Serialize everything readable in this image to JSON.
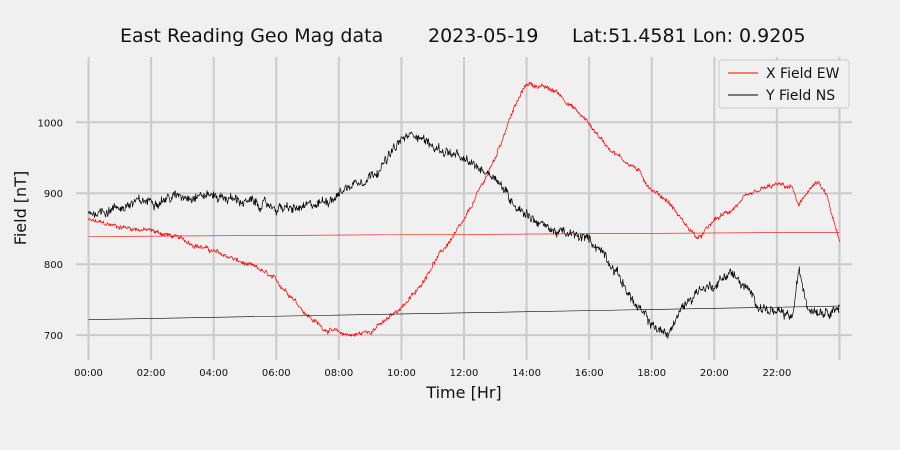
{
  "chart_data": {
    "type": "line",
    "title": {
      "name": "East Reading Geo Mag data",
      "date": "2023-05-19",
      "location": "Lat:51.4581  Lon: 0.9205"
    },
    "xlabel": "Time  [Hr]",
    "ylabel": "Field  [nT]",
    "xlim": [
      -0.4,
      24.4
    ],
    "ylim": [
      665,
      1092
    ],
    "x_ticks": [
      0,
      2,
      4,
      6,
      8,
      10,
      12,
      14,
      16,
      18,
      20,
      22
    ],
    "x_tick_labels": [
      "00:00",
      "02:00",
      "04:00",
      "06:00",
      "08:00",
      "10:00",
      "12:00",
      "14:00",
      "16:00",
      "18:00",
      "20:00",
      "22:00"
    ],
    "x_grid_extra": [
      24
    ],
    "y_ticks": [
      700,
      800,
      900,
      1000
    ],
    "grid": true,
    "legend_position": "top-right",
    "series": [
      {
        "name": "X Field EW",
        "color": "#ff0000",
        "noise": 3,
        "x": [
          0,
          0.5,
          1,
          1.5,
          2,
          2.5,
          3,
          3.5,
          4,
          4.5,
          5,
          5.5,
          6,
          6.5,
          7,
          7.5,
          8,
          8.5,
          9,
          9.5,
          10,
          10.5,
          11,
          11.5,
          12,
          12.5,
          13,
          13.5,
          14,
          14.5,
          15,
          15.5,
          16,
          16.5,
          17,
          17.5,
          18,
          18.5,
          19,
          19.5,
          20,
          20.5,
          21,
          21.5,
          22,
          22.5,
          22.7,
          23,
          23.3,
          23.6,
          24
        ],
        "y": [
          862,
          857,
          853,
          850,
          847,
          842,
          835,
          826,
          818,
          810,
          800,
          792,
          776,
          755,
          728,
          710,
          703,
          700,
          706,
          720,
          740,
          762,
          800,
          830,
          860,
          905,
          950,
          1010,
          1055,
          1050,
          1042,
          1020,
          998,
          970,
          950,
          935,
          905,
          890,
          860,
          835,
          862,
          875,
          893,
          905,
          912,
          908,
          880,
          905,
          915,
          895,
          830
        ]
      },
      {
        "name": "Y Field NS",
        "color": "#000000",
        "noise": 6,
        "x": [
          0,
          0.5,
          1,
          1.5,
          2,
          2.5,
          3,
          3.5,
          4,
          4.5,
          5,
          5.5,
          6,
          6.5,
          7,
          7.5,
          8,
          8.5,
          9,
          9.5,
          10,
          10.5,
          11,
          11.5,
          12,
          12.5,
          13,
          13.5,
          14,
          14.5,
          15,
          15.5,
          16,
          16.5,
          17,
          17.5,
          18,
          18.5,
          19,
          19.5,
          20,
          20.5,
          21,
          21.5,
          22,
          22.5,
          22.7,
          23,
          23.5,
          24
        ],
        "y": [
          872,
          876,
          880,
          886,
          890,
          893,
          897,
          898,
          897,
          893,
          888,
          884,
          880,
          877,
          880,
          888,
          900,
          915,
          925,
          945,
          975,
          985,
          965,
          958,
          945,
          935,
          925,
          890,
          872,
          855,
          845,
          840,
          835,
          815,
          780,
          740,
          715,
          700,
          740,
          765,
          770,
          790,
          765,
          740,
          730,
          725,
          790,
          740,
          735,
          740
        ]
      },
      {
        "name": "",
        "color": "#ff0000",
        "noise": 0,
        "x": [
          0,
          24
        ],
        "y": [
          839,
          845
        ]
      },
      {
        "name": "",
        "color": "#000000",
        "noise": 0,
        "x": [
          0,
          24
        ],
        "y": [
          722,
          741
        ]
      }
    ]
  }
}
